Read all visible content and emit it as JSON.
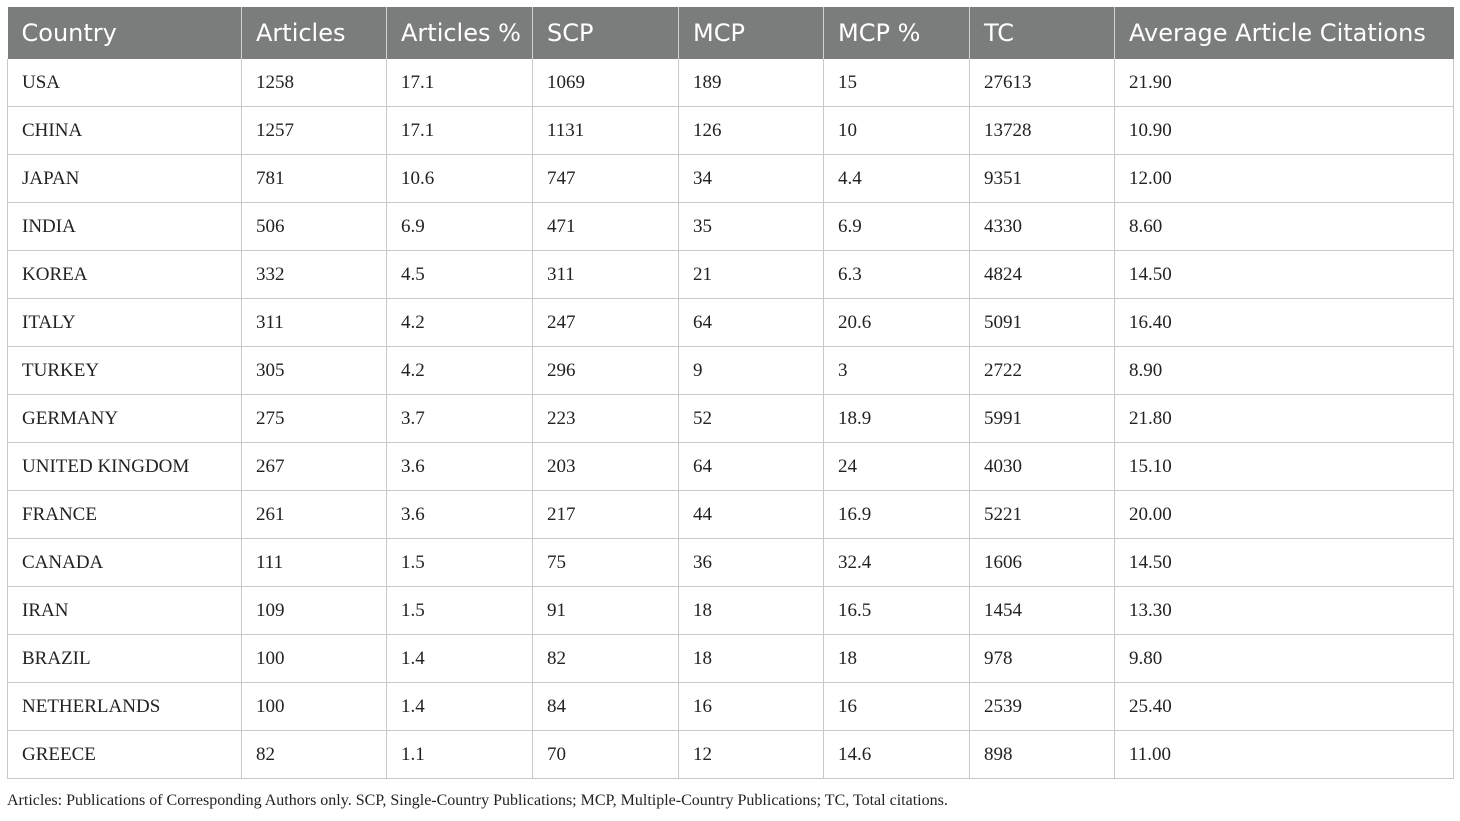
{
  "table": {
    "headers": [
      "Country",
      "Articles",
      "Articles %",
      "SCP",
      "MCP",
      "MCP %",
      "TC",
      "Average Article Citations"
    ],
    "rows": [
      [
        "USA",
        "1258",
        "17.1",
        "1069",
        "189",
        "15",
        "27613",
        "21.90"
      ],
      [
        "CHINA",
        "1257",
        "17.1",
        "1131",
        "126",
        "10",
        "13728",
        "10.90"
      ],
      [
        "JAPAN",
        "781",
        "10.6",
        "747",
        "34",
        "4.4",
        "9351",
        "12.00"
      ],
      [
        "INDIA",
        "506",
        "6.9",
        "471",
        "35",
        "6.9",
        "4330",
        "8.60"
      ],
      [
        "KOREA",
        "332",
        "4.5",
        "311",
        "21",
        "6.3",
        "4824",
        "14.50"
      ],
      [
        "ITALY",
        "311",
        "4.2",
        "247",
        "64",
        "20.6",
        "5091",
        "16.40"
      ],
      [
        "TURKEY",
        "305",
        "4.2",
        "296",
        "9",
        "3",
        "2722",
        "8.90"
      ],
      [
        "GERMANY",
        "275",
        "3.7",
        "223",
        "52",
        "18.9",
        "5991",
        "21.80"
      ],
      [
        "UNITED KINGDOM",
        "267",
        "3.6",
        "203",
        "64",
        "24",
        "4030",
        "15.10"
      ],
      [
        "FRANCE",
        "261",
        "3.6",
        "217",
        "44",
        "16.9",
        "5221",
        "20.00"
      ],
      [
        "CANADA",
        "111",
        "1.5",
        "75",
        "36",
        "32.4",
        "1606",
        "14.50"
      ],
      [
        "IRAN",
        "109",
        "1.5",
        "91",
        "18",
        "16.5",
        "1454",
        "13.30"
      ],
      [
        "BRAZIL",
        "100",
        "1.4",
        "82",
        "18",
        "18",
        "978",
        "9.80"
      ],
      [
        "NETHERLANDS",
        "100",
        "1.4",
        "84",
        "16",
        "16",
        "2539",
        "25.40"
      ],
      [
        "GREECE",
        "82",
        "1.1",
        "70",
        "12",
        "14.6",
        "898",
        "11.00"
      ]
    ]
  },
  "footnote": "Articles: Publications of Corresponding Authors only. SCP, Single-Country Publications; MCP, Multiple-Country Publications; TC, Total citations.",
  "colors": {
    "header_bg": "#7b7d7c",
    "header_text": "#ffffff",
    "grid": "#c8c8c8"
  }
}
